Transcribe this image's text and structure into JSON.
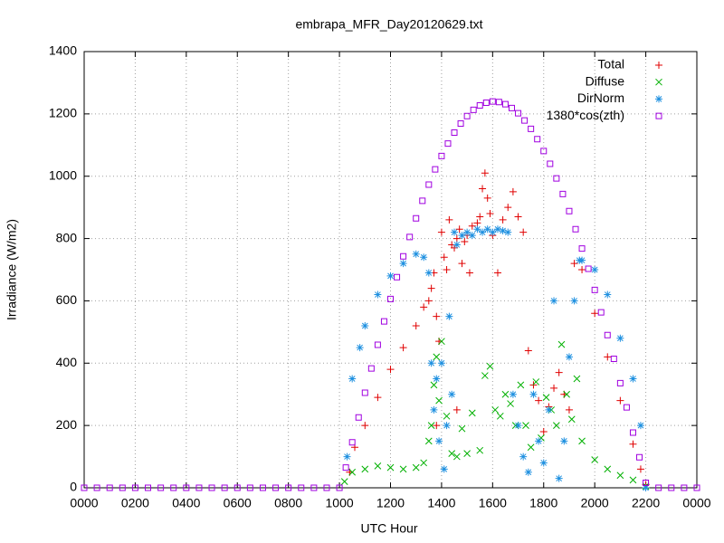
{
  "chart_data": {
    "type": "scatter",
    "title": "embrapa_MFR_Day20120629.txt",
    "xlabel": "UTC Hour",
    "ylabel": "Irradiance (W/m2)",
    "xlim": [
      0,
      24
    ],
    "ylim": [
      0,
      1400
    ],
    "xticks": [
      {
        "value": 0,
        "label": "0000"
      },
      {
        "value": 2,
        "label": "0200"
      },
      {
        "value": 4,
        "label": "0400"
      },
      {
        "value": 6,
        "label": "0600"
      },
      {
        "value": 8,
        "label": "0800"
      },
      {
        "value": 10,
        "label": "1000"
      },
      {
        "value": 12,
        "label": "1200"
      },
      {
        "value": 14,
        "label": "1400"
      },
      {
        "value": 16,
        "label": "1600"
      },
      {
        "value": 18,
        "label": "1800"
      },
      {
        "value": 20,
        "label": "2000"
      },
      {
        "value": 22,
        "label": "2200"
      },
      {
        "value": 24,
        "label": "0000"
      }
    ],
    "yticks": [
      0,
      200,
      400,
      600,
      800,
      1000,
      1200,
      1400
    ],
    "grid": true,
    "legend": "top-right",
    "series": [
      {
        "name": "Total",
        "color": "#e00000",
        "marker": "plus",
        "x": [
          10.4,
          10.6,
          11,
          11.5,
          12,
          12.5,
          13,
          13.3,
          13.5,
          13.6,
          13.7,
          13.8,
          13.8,
          13.9,
          14.0,
          14.1,
          14.2,
          14.3,
          14.4,
          14.5,
          14.6,
          14.6,
          14.7,
          14.8,
          14.9,
          15.0,
          15.1,
          15.2,
          15.4,
          15.5,
          15.6,
          15.7,
          15.8,
          15.9,
          16.0,
          16.2,
          16.4,
          16.6,
          16.8,
          17.0,
          17.2,
          17.4,
          17.6,
          17.8,
          18.0,
          18.2,
          18.4,
          18.6,
          18.8,
          19.0,
          19.2,
          19.5,
          20,
          20.5,
          21,
          21.5,
          21.8,
          22
        ],
        "values": [
          50,
          130,
          200,
          290,
          380,
          450,
          520,
          580,
          600,
          640,
          690,
          550,
          200,
          470,
          820,
          740,
          700,
          860,
          780,
          770,
          800,
          250,
          830,
          720,
          790,
          810,
          690,
          840,
          850,
          870,
          960,
          1010,
          930,
          880,
          810,
          690,
          860,
          900,
          950,
          870,
          820,
          440,
          330,
          280,
          180,
          260,
          320,
          370,
          300,
          250,
          720,
          700,
          560,
          420,
          280,
          140,
          60,
          10
        ]
      },
      {
        "name": "Diffuse",
        "color": "#00b000",
        "marker": "cross",
        "x": [
          10.2,
          10.5,
          11,
          11.5,
          12,
          12.5,
          13,
          13.3,
          13.5,
          13.6,
          13.7,
          13.8,
          13.9,
          14.0,
          14.2,
          14.4,
          14.6,
          14.8,
          15.0,
          15.2,
          15.5,
          15.7,
          15.9,
          16.1,
          16.3,
          16.5,
          16.7,
          16.9,
          17.1,
          17.3,
          17.5,
          17.7,
          17.9,
          18.1,
          18.3,
          18.5,
          18.7,
          18.9,
          19.1,
          19.3,
          19.5,
          20,
          20.5,
          21,
          21.5,
          22
        ],
        "values": [
          20,
          50,
          60,
          70,
          65,
          60,
          65,
          80,
          150,
          200,
          330,
          420,
          280,
          470,
          230,
          110,
          100,
          190,
          110,
          240,
          120,
          360,
          390,
          250,
          230,
          300,
          270,
          200,
          330,
          200,
          130,
          340,
          160,
          290,
          250,
          200,
          460,
          300,
          220,
          350,
          150,
          90,
          60,
          40,
          25,
          5
        ]
      },
      {
        "name": "DirNorm",
        "color": "#1e90e0",
        "marker": "star",
        "x": [
          10.3,
          10.5,
          10.8,
          11,
          11.5,
          12,
          12.5,
          13,
          13.3,
          13.5,
          13.6,
          13.7,
          13.8,
          13.9,
          14.0,
          14.1,
          14.2,
          14.3,
          14.4,
          14.5,
          14.6,
          14.8,
          15.0,
          15.2,
          15.4,
          15.6,
          15.8,
          16.0,
          16.2,
          16.4,
          16.6,
          16.8,
          17.0,
          17.2,
          17.4,
          17.6,
          17.8,
          18.0,
          18.2,
          18.4,
          18.6,
          18.8,
          19.0,
          19.2,
          19.4,
          19.5,
          20,
          20.5,
          21,
          21.5,
          21.8,
          22
        ],
        "values": [
          100,
          350,
          450,
          520,
          620,
          680,
          720,
          750,
          740,
          690,
          400,
          250,
          350,
          150,
          400,
          60,
          200,
          550,
          300,
          820,
          780,
          810,
          820,
          810,
          830,
          820,
          830,
          820,
          830,
          825,
          820,
          300,
          200,
          100,
          50,
          300,
          150,
          80,
          250,
          600,
          30,
          150,
          420,
          600,
          730,
          730,
          700,
          620,
          480,
          350,
          200,
          0
        ]
      },
      {
        "name": "1380*cos(zth)",
        "color": "#a000e0",
        "marker": "square",
        "x": [
          0,
          0.5,
          1,
          1.5,
          2,
          2.5,
          3,
          3.5,
          4,
          4.5,
          5,
          5.5,
          6,
          6.5,
          7,
          7.5,
          8,
          8.5,
          9,
          9.5,
          10,
          10.25,
          10.5,
          10.75,
          11,
          11.25,
          11.5,
          11.75,
          12,
          12.25,
          12.5,
          12.75,
          13,
          13.25,
          13.5,
          13.75,
          14,
          14.25,
          14.5,
          14.75,
          15,
          15.25,
          15.5,
          15.75,
          16,
          16.25,
          16.5,
          16.75,
          17,
          17.25,
          17.5,
          17.75,
          18,
          18.25,
          18.5,
          18.75,
          19,
          19.25,
          19.5,
          19.75,
          20,
          20.25,
          20.5,
          20.75,
          21,
          21.25,
          21.5,
          21.75,
          22,
          22.5,
          23,
          23.5,
          24
        ],
        "values": [
          0,
          0,
          0,
          0,
          0,
          0,
          0,
          0,
          0,
          0,
          0,
          0,
          0,
          0,
          0,
          0,
          0,
          0,
          0,
          0,
          0,
          65,
          146,
          226,
          305,
          383,
          459,
          534,
          606,
          676,
          743,
          805,
          865,
          921,
          973,
          1022,
          1065,
          1105,
          1140,
          1169,
          1193,
          1213,
          1227,
          1236,
          1240,
          1238,
          1231,
          1219,
          1202,
          1179,
          1152,
          1119,
          1081,
          1040,
          993,
          943,
          888,
          830,
          768,
          703,
          635,
          563,
          490,
          414,
          336,
          258,
          177,
          98,
          16,
          0,
          0,
          0,
          0
        ]
      }
    ]
  }
}
